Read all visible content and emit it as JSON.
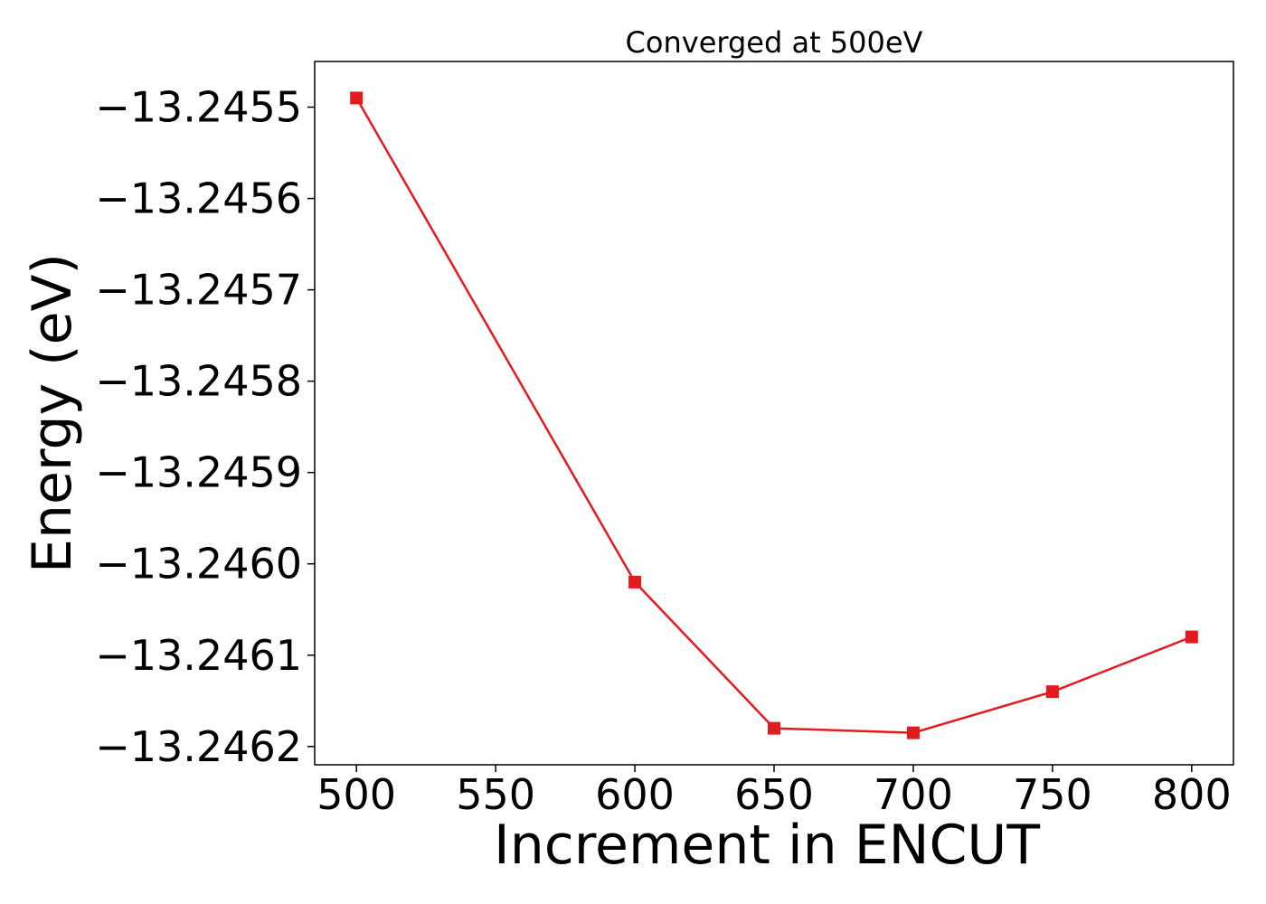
{
  "chart_data": {
    "type": "line",
    "title": "Converged at 500eV",
    "xlabel": "Increment in ENCUT",
    "ylabel": "Energy (eV)",
    "x": [
      500,
      600,
      650,
      700,
      750,
      800
    ],
    "series": [
      {
        "values": [
          -13.24549,
          -13.24602,
          -13.24618,
          -13.246185,
          -13.24614,
          -13.24608
        ],
        "color": "#e41a1c",
        "marker": "square"
      }
    ],
    "xlim": [
      485,
      815
    ],
    "ylim": [
      -13.24622,
      -13.24545
    ],
    "xticks": [
      500,
      550,
      600,
      650,
      700,
      750,
      800
    ],
    "xtick_labels": [
      "500",
      "550",
      "600",
      "650",
      "700",
      "750",
      "800"
    ],
    "yticks": [
      -13.2455,
      -13.2456,
      -13.2457,
      -13.2458,
      -13.2459,
      -13.246,
      -13.2461,
      -13.2462
    ],
    "ytick_labels": [
      "−13.2455",
      "−13.2456",
      "−13.2457",
      "−13.2458",
      "−13.2459",
      "−13.2460",
      "−13.2461",
      "−13.2462"
    ],
    "grid": false,
    "legend": "none"
  }
}
